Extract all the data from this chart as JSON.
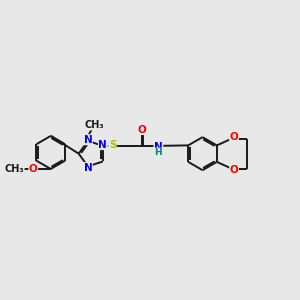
{
  "bg_color": "#e8e8e8",
  "bond_color": "#1a1a1a",
  "bond_width": 1.4,
  "atom_colors": {
    "N": "#0000ee",
    "O": "#ff0000",
    "S": "#bbbb00",
    "NH": "#008080"
  },
  "font_size": 7.5,
  "fig_size": [
    3.0,
    3.0
  ],
  "dpi": 100,
  "xlim": [
    0,
    12
  ],
  "ylim": [
    2,
    9
  ]
}
